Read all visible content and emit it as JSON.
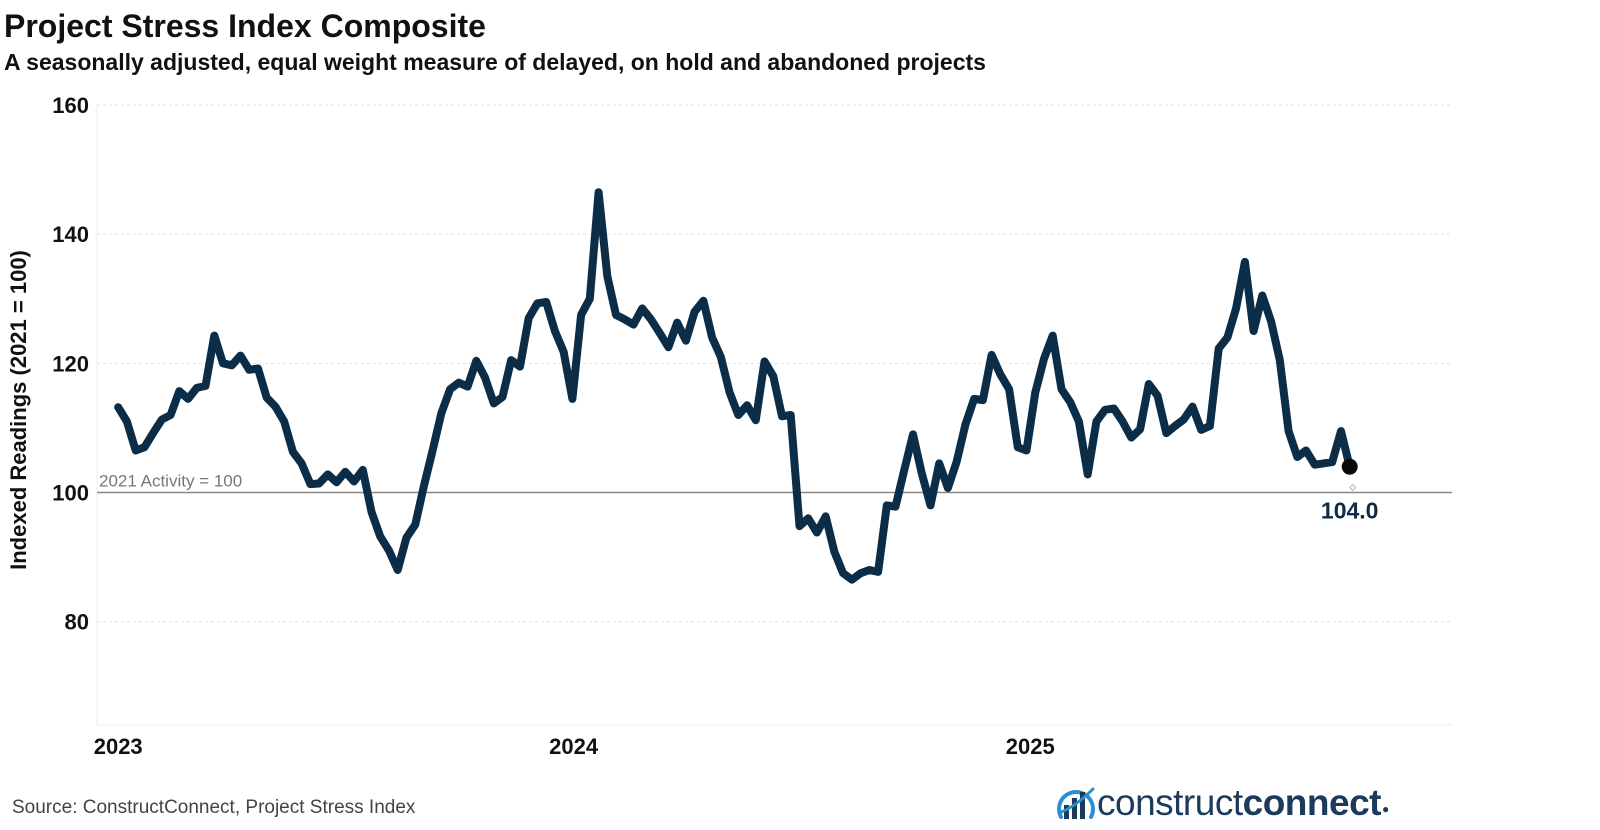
{
  "title": "Project Stress Index Composite",
  "subtitle": "A seasonally adjusted, equal weight measure of delayed, on hold and abandoned projects",
  "source": "Source: ConstructConnect, Project Stress Index",
  "logo": {
    "part1": "construct",
    "part2": "connect",
    "mark": "bar-chart-swoosh-logo"
  },
  "colors": {
    "line": "#0c2d48",
    "reference": "#888888",
    "grid": "#e3e3e3"
  },
  "chart_data": {
    "type": "line",
    "title": "Project Stress Index Composite",
    "subtitle": "A seasonally adjusted, equal weight measure of delayed, on hold and abandoned projects",
    "xlabel": "",
    "ylabel": "Indexed Readings (2021 = 100)",
    "ylim": [
      64,
      160
    ],
    "y_ticks": [
      80,
      100,
      120,
      140,
      160
    ],
    "xlim": [
      "2022-12-15",
      "2025-12-05"
    ],
    "x_ticks": [
      {
        "label": "2023",
        "date": "2023-01-01"
      },
      {
        "label": "2024",
        "date": "2024-01-01"
      },
      {
        "label": "2025",
        "date": "2025-01-01"
      }
    ],
    "grid": "horizontal dotted",
    "reference_line": {
      "value": 100,
      "label": "2021 Activity = 100"
    },
    "end_label": "104.0",
    "series": [
      {
        "name": "",
        "points": [
          [
            "2023-01-01",
            113.2
          ],
          [
            "2023-01-08",
            111.0
          ],
          [
            "2023-01-15",
            106.5
          ],
          [
            "2023-01-22",
            107.0
          ],
          [
            "2023-01-29",
            109.2
          ],
          [
            "2023-02-05",
            111.3
          ],
          [
            "2023-02-12",
            112.0
          ],
          [
            "2023-02-19",
            115.7
          ],
          [
            "2023-02-26",
            114.5
          ],
          [
            "2023-03-05",
            116.2
          ],
          [
            "2023-03-12",
            116.5
          ],
          [
            "2023-03-19",
            124.3
          ],
          [
            "2023-03-26",
            120.0
          ],
          [
            "2023-04-02",
            119.7
          ],
          [
            "2023-04-09",
            121.2
          ],
          [
            "2023-04-16",
            119.0
          ],
          [
            "2023-04-23",
            119.2
          ],
          [
            "2023-04-30",
            114.7
          ],
          [
            "2023-05-07",
            113.3
          ],
          [
            "2023-05-14",
            111.0
          ],
          [
            "2023-05-21",
            106.3
          ],
          [
            "2023-05-28",
            104.5
          ],
          [
            "2023-06-04",
            101.3
          ],
          [
            "2023-06-11",
            101.4
          ],
          [
            "2023-06-18",
            102.8
          ],
          [
            "2023-06-25",
            101.6
          ],
          [
            "2023-07-02",
            103.2
          ],
          [
            "2023-07-09",
            101.7
          ],
          [
            "2023-07-16",
            103.5
          ],
          [
            "2023-07-23",
            97.0
          ],
          [
            "2023-07-30",
            93.2
          ],
          [
            "2023-08-06",
            91.0
          ],
          [
            "2023-08-13",
            88.0
          ],
          [
            "2023-08-20",
            93.0
          ],
          [
            "2023-08-27",
            95.0
          ],
          [
            "2023-09-03",
            101.0
          ],
          [
            "2023-09-10",
            106.5
          ],
          [
            "2023-09-17",
            112.3
          ],
          [
            "2023-09-24",
            116.0
          ],
          [
            "2023-10-01",
            117.0
          ],
          [
            "2023-10-08",
            116.4
          ],
          [
            "2023-10-15",
            120.4
          ],
          [
            "2023-10-22",
            117.8
          ],
          [
            "2023-10-29",
            113.8
          ],
          [
            "2023-11-05",
            114.8
          ],
          [
            "2023-11-12",
            120.5
          ],
          [
            "2023-11-19",
            119.5
          ],
          [
            "2023-11-26",
            127.0
          ],
          [
            "2023-12-03",
            129.3
          ],
          [
            "2023-12-10",
            129.5
          ],
          [
            "2023-12-17",
            125.0
          ],
          [
            "2023-12-24",
            121.8
          ],
          [
            "2023-12-31",
            114.5
          ],
          [
            "2024-01-07",
            127.5
          ],
          [
            "2024-01-14",
            130.0
          ],
          [
            "2024-01-21",
            146.5
          ],
          [
            "2024-01-28",
            133.5
          ],
          [
            "2024-02-04",
            127.5
          ],
          [
            "2024-02-11",
            126.8
          ],
          [
            "2024-02-18",
            126.0
          ],
          [
            "2024-02-25",
            128.5
          ],
          [
            "2024-03-03",
            126.8
          ],
          [
            "2024-03-10",
            124.7
          ],
          [
            "2024-03-17",
            122.5
          ],
          [
            "2024-03-24",
            126.3
          ],
          [
            "2024-03-31",
            123.5
          ],
          [
            "2024-04-07",
            128.0
          ],
          [
            "2024-04-14",
            129.7
          ],
          [
            "2024-04-21",
            124.0
          ],
          [
            "2024-04-28",
            121.0
          ],
          [
            "2024-05-05",
            115.5
          ],
          [
            "2024-05-12",
            112.0
          ],
          [
            "2024-05-19",
            113.5
          ],
          [
            "2024-05-26",
            111.2
          ],
          [
            "2024-06-02",
            120.3
          ],
          [
            "2024-06-09",
            118.0
          ],
          [
            "2024-06-16",
            111.8
          ],
          [
            "2024-06-23",
            112.0
          ],
          [
            "2024-06-30",
            94.8
          ],
          [
            "2024-07-07",
            96.0
          ],
          [
            "2024-07-14",
            93.8
          ],
          [
            "2024-07-21",
            96.3
          ],
          [
            "2024-07-28",
            90.8
          ],
          [
            "2024-08-04",
            87.5
          ],
          [
            "2024-08-11",
            86.5
          ],
          [
            "2024-08-18",
            87.5
          ],
          [
            "2024-08-25",
            88.0
          ],
          [
            "2024-09-01",
            87.7
          ],
          [
            "2024-09-08",
            98.0
          ],
          [
            "2024-09-15",
            97.8
          ],
          [
            "2024-09-22",
            103.5
          ],
          [
            "2024-09-29",
            109.0
          ],
          [
            "2024-10-06",
            103.0
          ],
          [
            "2024-10-13",
            98.0
          ],
          [
            "2024-10-20",
            104.5
          ],
          [
            "2024-10-27",
            100.7
          ],
          [
            "2024-11-03",
            104.8
          ],
          [
            "2024-11-10",
            110.5
          ],
          [
            "2024-11-17",
            114.5
          ],
          [
            "2024-11-24",
            114.3
          ],
          [
            "2024-12-01",
            121.3
          ],
          [
            "2024-12-08",
            118.3
          ],
          [
            "2024-12-15",
            116.0
          ],
          [
            "2024-12-22",
            107.0
          ],
          [
            "2024-12-29",
            106.5
          ],
          [
            "2025-01-05",
            115.5
          ],
          [
            "2025-01-12",
            120.7
          ],
          [
            "2025-01-19",
            124.3
          ],
          [
            "2025-01-26",
            116.0
          ],
          [
            "2025-02-02",
            114.0
          ],
          [
            "2025-02-09",
            111.0
          ],
          [
            "2025-02-16",
            102.8
          ],
          [
            "2025-02-23",
            111.0
          ],
          [
            "2025-03-02",
            112.8
          ],
          [
            "2025-03-09",
            113.0
          ],
          [
            "2025-03-16",
            111.0
          ],
          [
            "2025-03-23",
            108.5
          ],
          [
            "2025-03-30",
            109.8
          ],
          [
            "2025-04-06",
            116.8
          ],
          [
            "2025-04-13",
            115.0
          ],
          [
            "2025-04-20",
            109.2
          ],
          [
            "2025-04-27",
            110.3
          ],
          [
            "2025-05-04",
            111.3
          ],
          [
            "2025-05-11",
            113.3
          ],
          [
            "2025-05-18",
            109.7
          ],
          [
            "2025-05-25",
            110.3
          ],
          [
            "2025-06-01",
            122.3
          ],
          [
            "2025-06-08",
            124.0
          ],
          [
            "2025-06-15",
            128.5
          ],
          [
            "2025-06-22",
            135.7
          ],
          [
            "2025-06-29",
            125.0
          ],
          [
            "2025-07-06",
            130.5
          ],
          [
            "2025-07-13",
            126.5
          ],
          [
            "2025-07-20",
            120.5
          ],
          [
            "2025-07-27",
            109.5
          ],
          [
            "2025-08-03",
            105.5
          ],
          [
            "2025-08-10",
            106.5
          ],
          [
            "2025-08-17",
            104.3
          ],
          [
            "2025-08-24",
            104.5
          ],
          [
            "2025-08-31",
            104.7
          ],
          [
            "2025-09-07",
            109.5
          ],
          [
            "2025-09-14",
            104.0
          ]
        ]
      }
    ]
  }
}
